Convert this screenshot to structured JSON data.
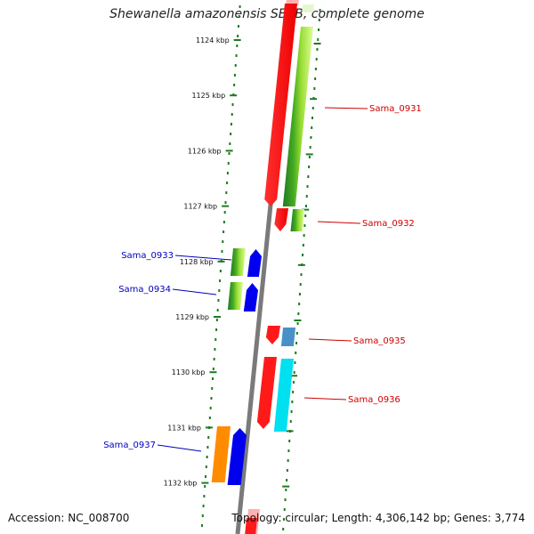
{
  "title": "Shewanella amazonensis SB2B, complete genome",
  "accession": "Accession: NC_008700",
  "stats": "Topology: circular; Length: 4,306,142 bp; Genes: 3,774",
  "colors": {
    "backbone": "#7a7a7a",
    "dots": "#1f7a1f",
    "reverse_label": "#cc0000",
    "forward_label": "#0000bb",
    "red": "#ff1a1a",
    "blue": "#0000ee",
    "green": "#44aa22",
    "lightgreen": "#ccff66",
    "cyan": "#00e0ee",
    "steelblue": "#4a90c8",
    "orange": "#ff8c00",
    "pink": "#ffb0b0"
  },
  "ticks": [
    "1124 kbp",
    "1125 kbp",
    "1126 kbp",
    "1127 kbp",
    "1128 kbp",
    "1129 kbp",
    "1130 kbp",
    "1131 kbp",
    "1132 kbp"
  ],
  "genes": [
    {
      "name": "Sama_0931",
      "strand": "reverse"
    },
    {
      "name": "Sama_0932",
      "strand": "reverse"
    },
    {
      "name": "Sama_0933",
      "strand": "forward"
    },
    {
      "name": "Sama_0934",
      "strand": "forward"
    },
    {
      "name": "Sama_0935",
      "strand": "reverse"
    },
    {
      "name": "Sama_0936",
      "strand": "reverse"
    },
    {
      "name": "Sama_0937",
      "strand": "forward"
    }
  ]
}
